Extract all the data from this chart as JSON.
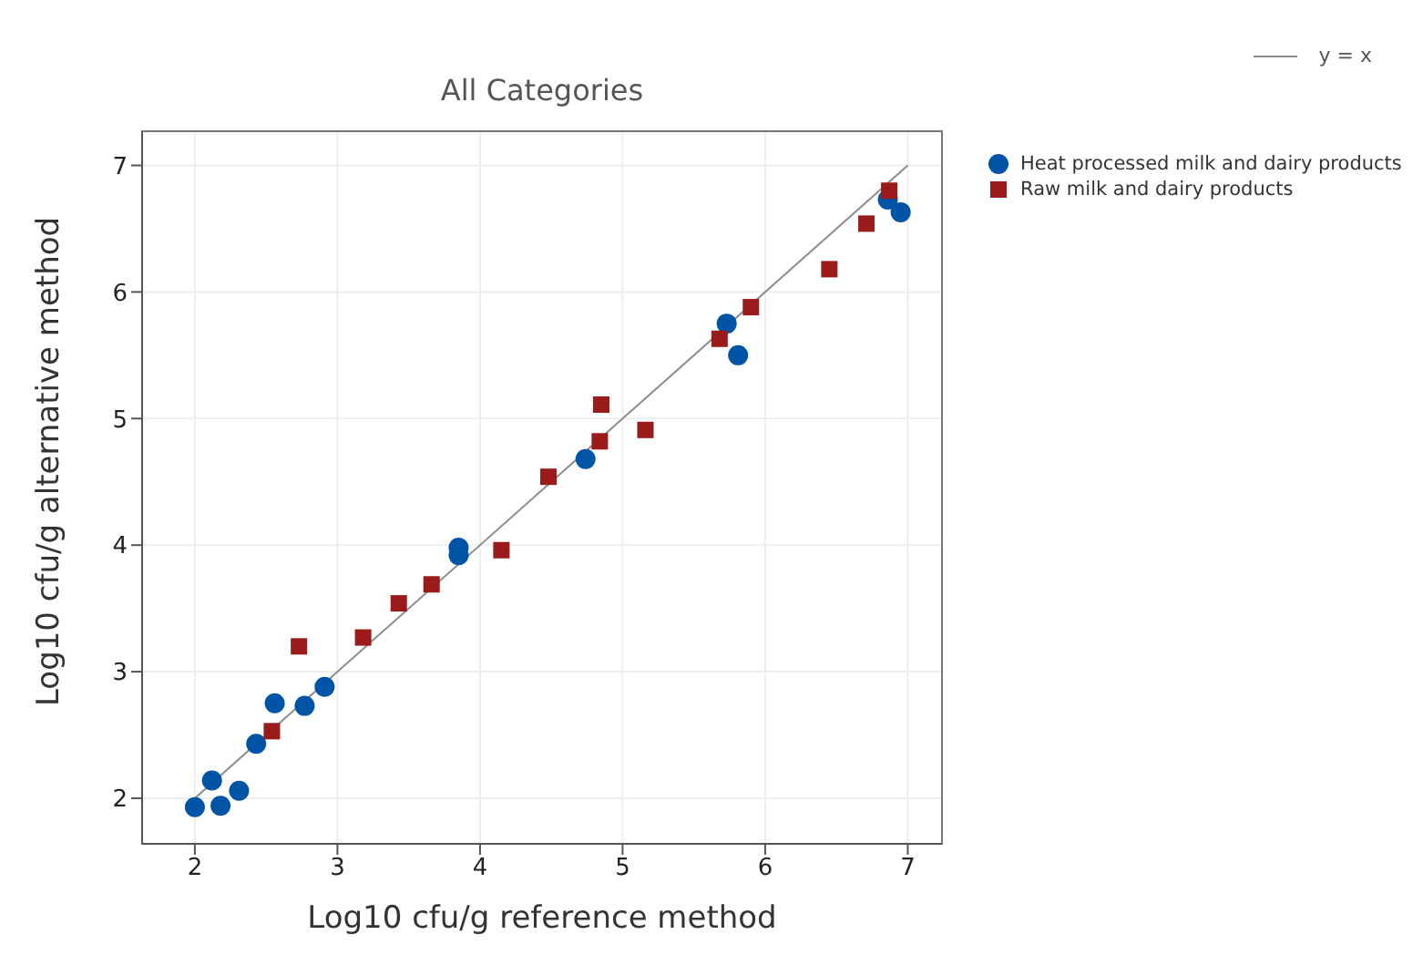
{
  "chart_data": {
    "type": "scatter",
    "title": "All Categories",
    "xlabel": "Log10 cfu/g reference method",
    "ylabel": "Log10 cfu/g alternative method",
    "xlim": [
      1.63,
      7.24
    ],
    "xticks": [
      2,
      3,
      4,
      5,
      6,
      7
    ],
    "ylim": [
      1.64,
      7.27
    ],
    "yticks": [
      2,
      3,
      4,
      5,
      6,
      7
    ],
    "grid": true,
    "legend": "right",
    "series": [
      {
        "name": "y = x",
        "type": "line",
        "color": "#8c8c8c",
        "marker": "none",
        "x": [
          2,
          7
        ],
        "values": [
          2,
          7
        ]
      },
      {
        "name": "Heat processed milk and dairy products",
        "color": "#0054a6",
        "marker": "circle",
        "x": [
          2.0,
          2.12,
          2.18,
          2.31,
          2.43,
          2.56,
          2.77,
          2.91,
          3.85,
          3.85,
          4.74,
          5.73,
          5.81,
          6.86,
          6.95
        ],
        "values": [
          1.93,
          2.14,
          1.94,
          2.06,
          2.43,
          2.75,
          2.73,
          2.88,
          3.92,
          3.98,
          4.68,
          5.75,
          5.5,
          6.73,
          6.63
        ]
      },
      {
        "name": "Raw milk and dairy products",
        "color": "#9b1b1b",
        "marker": "square",
        "x": [
          2.54,
          2.73,
          3.18,
          3.43,
          3.66,
          4.15,
          4.48,
          4.85,
          4.84,
          5.16,
          5.68,
          5.9,
          6.45,
          6.71,
          6.87
        ],
        "values": [
          2.53,
          3.2,
          3.27,
          3.54,
          3.69,
          3.96,
          4.54,
          5.11,
          4.82,
          4.91,
          5.63,
          5.88,
          6.18,
          6.54,
          6.8
        ]
      }
    ]
  }
}
